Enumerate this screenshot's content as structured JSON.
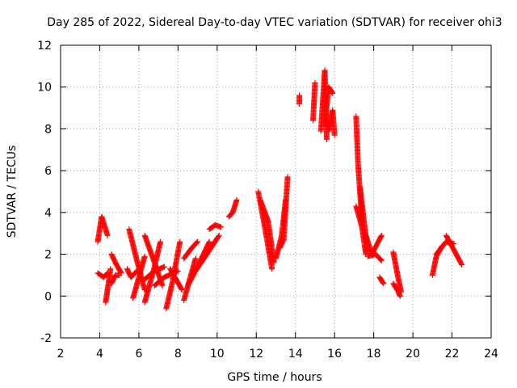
{
  "chart_data": {
    "type": "scatter",
    "title": "Day 285 of 2022, Sidereal Day-to-day VTEC variation (SDTVAR) for receiver ohi3",
    "xlabel": "GPS time / hours",
    "ylabel": "SDTVAR / TECUs",
    "xlim": [
      2,
      24
    ],
    "ylim": [
      -2,
      12
    ],
    "xticks": [
      2,
      4,
      6,
      8,
      10,
      12,
      14,
      16,
      18,
      20,
      22,
      24
    ],
    "yticks": [
      -2,
      0,
      2,
      4,
      6,
      8,
      10,
      12
    ],
    "grid": true,
    "marker": "+",
    "colors": {
      "series": "#ff0000",
      "grid": "#a0a0a0",
      "axis": "#000000"
    },
    "series": [
      {
        "name": "SDTVAR",
        "segments": [
          [
            [
              3.9,
              2.6
            ],
            [
              4.1,
              3.8
            ],
            [
              4.4,
              2.9
            ]
          ],
          [
            [
              3.9,
              1.1
            ],
            [
              4.2,
              0.9
            ],
            [
              4.4,
              1.1
            ]
          ],
          [
            [
              4.3,
              -0.3
            ],
            [
              4.4,
              0.3
            ],
            [
              4.55,
              1.3
            ]
          ],
          [
            [
              4.6,
              2.0
            ],
            [
              4.8,
              1.6
            ],
            [
              5.1,
              1.1
            ]
          ],
          [
            [
              4.6,
              0.6
            ],
            [
              4.8,
              1.0
            ],
            [
              5.0,
              1.0
            ]
          ],
          [
            [
              5.5,
              3.2
            ],
            [
              5.9,
              1.7
            ],
            [
              6.3,
              0.3
            ]
          ],
          [
            [
              5.4,
              1.3
            ],
            [
              5.6,
              0.9
            ],
            [
              5.9,
              1.2
            ]
          ],
          [
            [
              5.7,
              -0.1
            ],
            [
              6.0,
              0.9
            ],
            [
              6.3,
              1.9
            ]
          ],
          [
            [
              6.3,
              2.9
            ],
            [
              6.8,
              1.6
            ],
            [
              7.2,
              0.5
            ]
          ],
          [
            [
              6.3,
              -0.3
            ],
            [
              6.8,
              1.4
            ],
            [
              7.1,
              2.6
            ]
          ],
          [
            [
              6.3,
              0.8
            ],
            [
              6.8,
              1.2
            ],
            [
              7.3,
              1.4
            ]
          ],
          [
            [
              6.8,
              0.5
            ],
            [
              7.3,
              0.9
            ],
            [
              8.0,
              1.2
            ]
          ],
          [
            [
              7.4,
              -0.6
            ],
            [
              7.7,
              0.6
            ],
            [
              8.1,
              2.6
            ]
          ],
          [
            [
              7.6,
              1.3
            ],
            [
              7.9,
              0.8
            ],
            [
              8.2,
              0.3
            ]
          ],
          [
            [
              8.3,
              -0.2
            ],
            [
              8.6,
              0.8
            ],
            [
              8.9,
              1.8
            ]
          ],
          [
            [
              8.3,
              1.8
            ],
            [
              8.7,
              2.3
            ],
            [
              9.0,
              2.6
            ]
          ],
          [
            [
              8.5,
              0.5
            ],
            [
              9.0,
              1.4
            ],
            [
              9.6,
              2.6
            ]
          ],
          [
            [
              8.9,
              1.2
            ],
            [
              9.4,
              1.9
            ],
            [
              10.1,
              2.9
            ]
          ],
          [
            [
              9.6,
              3.2
            ],
            [
              9.9,
              3.4
            ],
            [
              10.2,
              3.3
            ]
          ],
          [
            [
              10.6,
              3.8
            ],
            [
              10.8,
              4.0
            ],
            [
              11.0,
              4.6
            ]
          ],
          [
            [
              12.1,
              5.0
            ],
            [
              12.4,
              3.5
            ],
            [
              12.8,
              1.3
            ]
          ],
          [
            [
              12.2,
              4.6
            ],
            [
              12.6,
              3.6
            ],
            [
              12.9,
              1.6
            ]
          ],
          [
            [
              13.0,
              1.8
            ],
            [
              13.3,
              2.9
            ],
            [
              13.5,
              4.6
            ]
          ],
          [
            [
              13.2,
              2.3
            ],
            [
              13.4,
              2.7
            ],
            [
              13.6,
              5.7
            ]
          ],
          [
            [
              14.2,
              9.6
            ],
            [
              14.2,
              9.2
            ]
          ],
          [
            [
              14.9,
              8.4
            ],
            [
              15.0,
              10.2
            ]
          ],
          [
            [
              15.3,
              7.9
            ],
            [
              15.5,
              10.8
            ],
            [
              15.6,
              7.5
            ]
          ],
          [
            [
              15.5,
              8.2
            ],
            [
              15.7,
              10.0
            ],
            [
              15.9,
              9.7
            ]
          ],
          [
            [
              15.7,
              7.9
            ],
            [
              15.9,
              8.9
            ],
            [
              16.0,
              7.7
            ]
          ],
          [
            [
              17.1,
              8.6
            ],
            [
              17.2,
              6.3
            ],
            [
              17.4,
              3.6
            ]
          ],
          [
            [
              17.1,
              4.3
            ],
            [
              17.4,
              3.3
            ],
            [
              17.6,
              2.0
            ]
          ],
          [
            [
              17.3,
              5.2
            ],
            [
              17.5,
              3.6
            ],
            [
              17.7,
              2.1
            ]
          ],
          [
            [
              17.6,
              2.9
            ],
            [
              17.9,
              2.0
            ],
            [
              18.4,
              2.9
            ]
          ],
          [
            [
              17.7,
              1.9
            ],
            [
              18.1,
              2.0
            ],
            [
              18.4,
              1.7
            ]
          ],
          [
            [
              18.3,
              0.9
            ],
            [
              18.5,
              0.6
            ]
          ],
          [
            [
              19.0,
              2.1
            ],
            [
              19.2,
              1.1
            ],
            [
              19.4,
              0.2
            ]
          ],
          [
            [
              19.0,
              0.6
            ],
            [
              19.2,
              0.3
            ],
            [
              19.35,
              0.0
            ]
          ],
          [
            [
              21.0,
              1.0
            ],
            [
              21.2,
              1.9
            ],
            [
              21.5,
              2.4
            ]
          ],
          [
            [
              21.2,
              2.0
            ],
            [
              21.7,
              2.6
            ],
            [
              22.1,
              2.5
            ]
          ],
          [
            [
              21.7,
              2.9
            ],
            [
              22.1,
              2.2
            ],
            [
              22.5,
              1.5
            ]
          ]
        ]
      }
    ]
  }
}
